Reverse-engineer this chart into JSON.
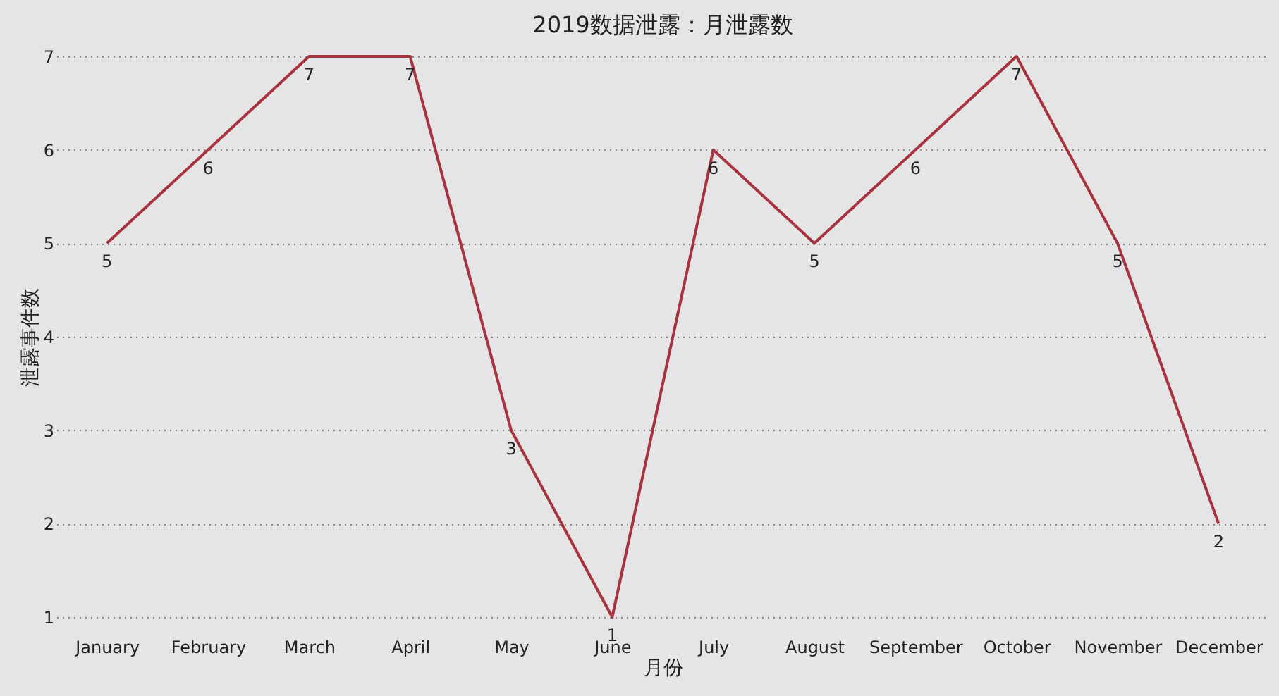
{
  "chart_data": {
    "type": "line",
    "title": "2019数据泄露：月泄露数",
    "xlabel": "月份",
    "ylabel": "泄露事件数",
    "categories": [
      "January",
      "February",
      "March",
      "April",
      "May",
      "June",
      "July",
      "August",
      "September",
      "October",
      "November",
      "December"
    ],
    "series": [
      {
        "color": "#a8323e",
        "values": [
          5,
          6,
          7,
          7,
          3,
          1,
          6,
          5,
          6,
          7,
          5,
          2
        ]
      }
    ],
    "ylim": [
      1,
      7
    ],
    "yticks": [
      1,
      2,
      3,
      4,
      5,
      6,
      7
    ],
    "grid": "y",
    "data_labels": true,
    "marker": "none",
    "line_style": "solid",
    "legend": false
  }
}
